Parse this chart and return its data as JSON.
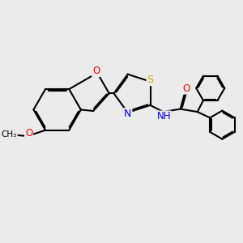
{
  "bg_color": "#ebebeb",
  "bond_color": "#000000",
  "bond_width": 1.5,
  "dbo": 0.055,
  "atom_colors": {
    "S": "#ccaa00",
    "N": "#0000ff",
    "O": "#ff0000",
    "C": "#000000",
    "H": "#008888"
  },
  "font_size": 9,
  "fig_size": [
    3.0,
    3.0
  ],
  "dpi": 100,
  "xlim": [
    0,
    10
  ],
  "ylim": [
    0,
    10
  ]
}
